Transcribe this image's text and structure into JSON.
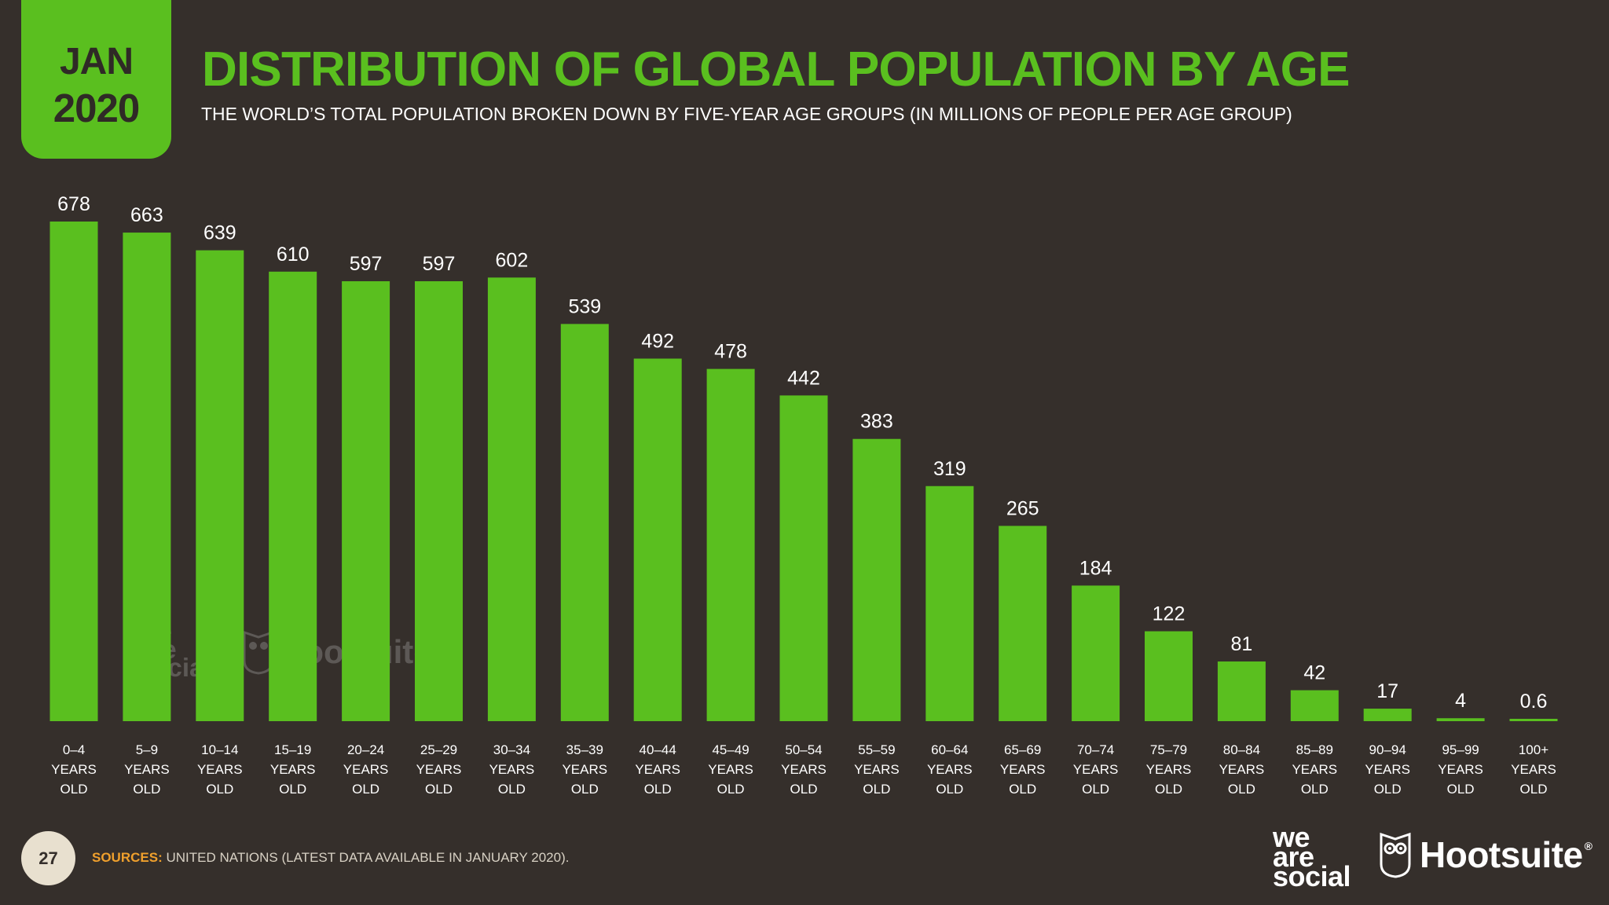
{
  "badge": {
    "month": "JAN",
    "year": "2020"
  },
  "colors": {
    "background": "#352f2b",
    "accent": "#5abf1f",
    "sources_label": "#f0a02c",
    "page_badge": "#e8e0cf"
  },
  "page_number": "27",
  "sources": {
    "label": "SOURCES:",
    "text": "UNITED NATIONS (LATEST DATA AVAILABLE IN JANUARY 2020)."
  },
  "logos": {
    "we_are_social": "we are social",
    "hootsuite": "Hootsuite",
    "hootsuite_mark": "®",
    "owl_icon": "owl-icon"
  },
  "chart_data": {
    "type": "bar",
    "title": "DISTRIBUTION OF GLOBAL POPULATION BY AGE",
    "subtitle": "THE WORLD’S TOTAL POPULATION BROKEN DOWN BY FIVE-YEAR AGE GROUPS (IN MILLIONS OF PEOPLE PER AGE GROUP)",
    "categories": [
      [
        "0–4",
        "YEARS",
        "OLD"
      ],
      [
        "5–9",
        "YEARS",
        "OLD"
      ],
      [
        "10–14",
        "YEARS",
        "OLD"
      ],
      [
        "15–19",
        "YEARS",
        "OLD"
      ],
      [
        "20–24",
        "YEARS",
        "OLD"
      ],
      [
        "25–29",
        "YEARS",
        "OLD"
      ],
      [
        "30–34",
        "YEARS",
        "OLD"
      ],
      [
        "35–39",
        "YEARS",
        "OLD"
      ],
      [
        "40–44",
        "YEARS",
        "OLD"
      ],
      [
        "45–49",
        "YEARS",
        "OLD"
      ],
      [
        "50–54",
        "YEARS",
        "OLD"
      ],
      [
        "55–59",
        "YEARS",
        "OLD"
      ],
      [
        "60–64",
        "YEARS",
        "OLD"
      ],
      [
        "65–69",
        "YEARS",
        "OLD"
      ],
      [
        "70–74",
        "YEARS",
        "OLD"
      ],
      [
        "75–79",
        "YEARS",
        "OLD"
      ],
      [
        "80–84",
        "YEARS",
        "OLD"
      ],
      [
        "85–89",
        "YEARS",
        "OLD"
      ],
      [
        "90–94",
        "YEARS",
        "OLD"
      ],
      [
        "95–99",
        "YEARS",
        "OLD"
      ],
      [
        "100+",
        "YEARS",
        "OLD"
      ]
    ],
    "values": [
      678,
      663,
      639,
      610,
      597,
      597,
      602,
      539,
      492,
      478,
      442,
      383,
      319,
      265,
      184,
      122,
      81,
      42,
      17,
      4,
      0.6
    ],
    "value_labels": [
      "678",
      "663",
      "639",
      "610",
      "597",
      "597",
      "602",
      "539",
      "492",
      "478",
      "442",
      "383",
      "319",
      "265",
      "184",
      "122",
      "81",
      "42",
      "17",
      "4",
      "0.6"
    ],
    "ylim": [
      0,
      678
    ],
    "grid": false,
    "legend": "none"
  }
}
